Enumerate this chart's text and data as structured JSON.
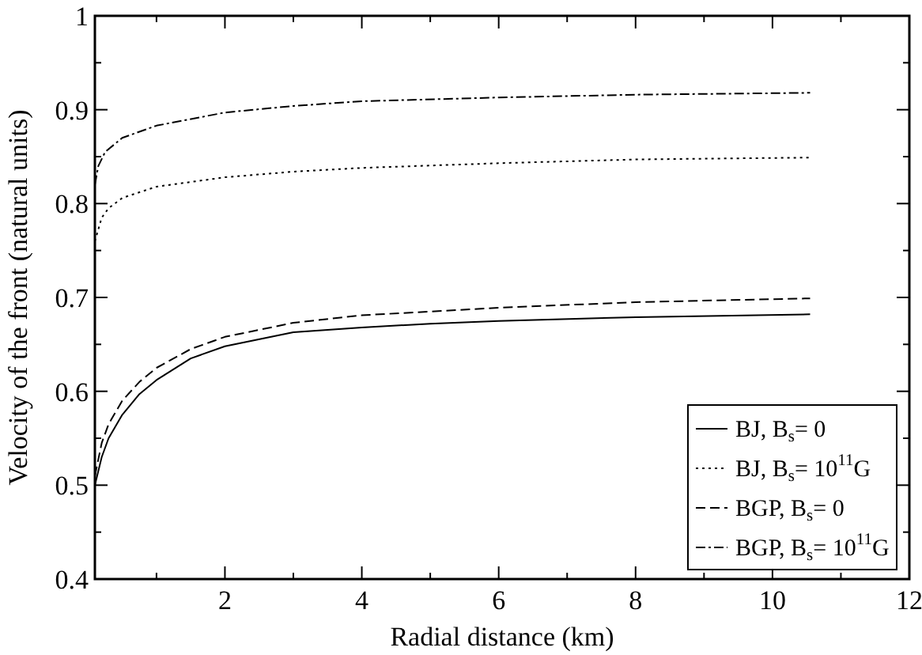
{
  "chart_data": {
    "type": "line",
    "xlabel": "Radial distance (km)",
    "ylabel": "Velocity of the front (natural units)",
    "xlim": [
      0.1,
      12
    ],
    "ylim": [
      0.4,
      1
    ],
    "xticks": [
      {
        "value": 1,
        "label": null
      },
      2,
      {
        "value": 3,
        "label": null
      },
      4,
      {
        "value": 5,
        "label": null
      },
      6,
      {
        "value": 7,
        "label": null
      },
      8,
      {
        "value": 9,
        "label": null
      },
      10,
      {
        "value": 11,
        "label": null
      },
      12
    ],
    "yticks": [
      0.4,
      {
        "value": 0.45,
        "label": null
      },
      0.5,
      {
        "value": 0.55,
        "label": null
      },
      0.6,
      {
        "value": 0.65,
        "label": null
      },
      0.7,
      {
        "value": 0.75,
        "label": null
      },
      0.8,
      {
        "value": 0.85,
        "label": null
      },
      0.9,
      {
        "value": 0.95,
        "label": null
      },
      1
    ],
    "grid": false,
    "legend": "bottom right",
    "marker": "none",
    "series": [
      {
        "name": "BJ, B$_{s}$= 0",
        "color": "#000000",
        "line_style": "solid",
        "x": [
          0.1,
          0.2,
          0.3,
          0.5,
          0.75,
          1,
          1.5,
          2,
          3,
          4,
          5,
          6,
          8,
          10.55
        ],
        "values": [
          0.5,
          0.53,
          0.55,
          0.575,
          0.597,
          0.612,
          0.635,
          0.648,
          0.663,
          0.668,
          0.672,
          0.675,
          0.679,
          0.682
        ]
      },
      {
        "name": "BJ, B$_{s}$= 10$^{11}$G",
        "color": "#000000",
        "line_style": "dotted",
        "x": [
          0.1,
          0.2,
          0.3,
          0.5,
          1,
          2,
          3,
          4,
          6,
          8,
          10.55
        ],
        "values": [
          0.76,
          0.785,
          0.795,
          0.806,
          0.818,
          0.828,
          0.834,
          0.838,
          0.843,
          0.847,
          0.849
        ]
      },
      {
        "name": "BGP, B$_{s}$= 0",
        "color": "#000000",
        "line_style": "dashed",
        "x": [
          0.1,
          0.2,
          0.3,
          0.5,
          0.75,
          1,
          1.5,
          2,
          3,
          4,
          6,
          8,
          10.55
        ],
        "values": [
          0.51,
          0.545,
          0.565,
          0.59,
          0.61,
          0.625,
          0.645,
          0.658,
          0.673,
          0.681,
          0.689,
          0.695,
          0.699
        ]
      },
      {
        "name": "BGP, B$_{s}$= 10$^{11}$G",
        "color": "#000000",
        "line_style": "dashdot",
        "x": [
          0.1,
          0.15,
          0.25,
          0.5,
          1,
          2,
          3,
          4,
          6,
          8,
          10.55
        ],
        "values": [
          0.82,
          0.84,
          0.855,
          0.87,
          0.883,
          0.897,
          0.904,
          0.909,
          0.913,
          0.916,
          0.918
        ]
      }
    ]
  }
}
